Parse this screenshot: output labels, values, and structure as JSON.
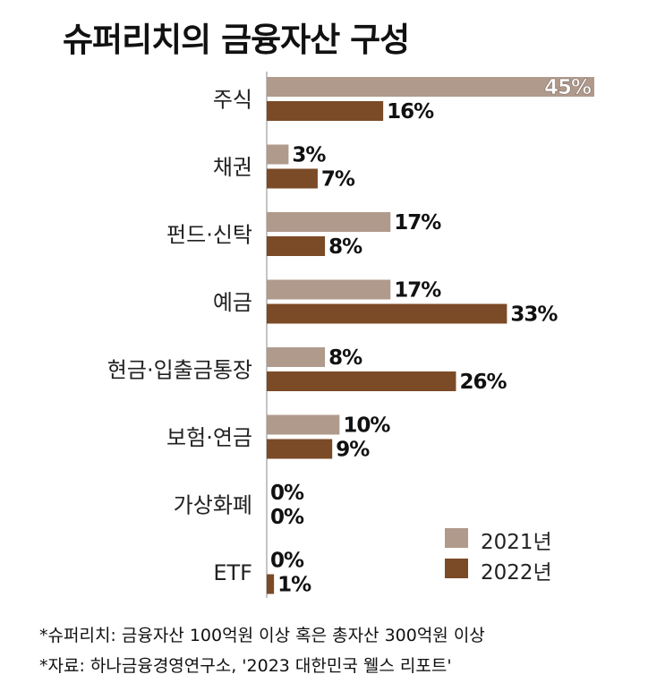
{
  "chart_data": {
    "type": "bar",
    "orientation": "horizontal",
    "title": "슈퍼리치의 금융자산 구성",
    "categories": [
      "주식",
      "채권",
      "펀드·신탁",
      "예금",
      "현금·입출금통장",
      "보험·연금",
      "가상화폐",
      "ETF"
    ],
    "series": [
      {
        "name": "2021년",
        "color": "#b09a8c",
        "values": [
          45,
          3,
          17,
          17,
          8,
          10,
          0,
          0
        ]
      },
      {
        "name": "2022년",
        "color": "#7b4a26",
        "values": [
          16,
          7,
          8,
          33,
          26,
          9,
          0,
          1
        ]
      }
    ],
    "value_suffix": "%",
    "xlim": [
      0,
      45
    ],
    "grid": false,
    "legend_position": "bottom-right",
    "footnotes": [
      "*슈퍼리치: 금융자산 100억원 이상 혹은 총자산 300억원 이상",
      "*자료: 하나금융경영연구소, '2023 대한민국 웰스 리포트'"
    ]
  }
}
